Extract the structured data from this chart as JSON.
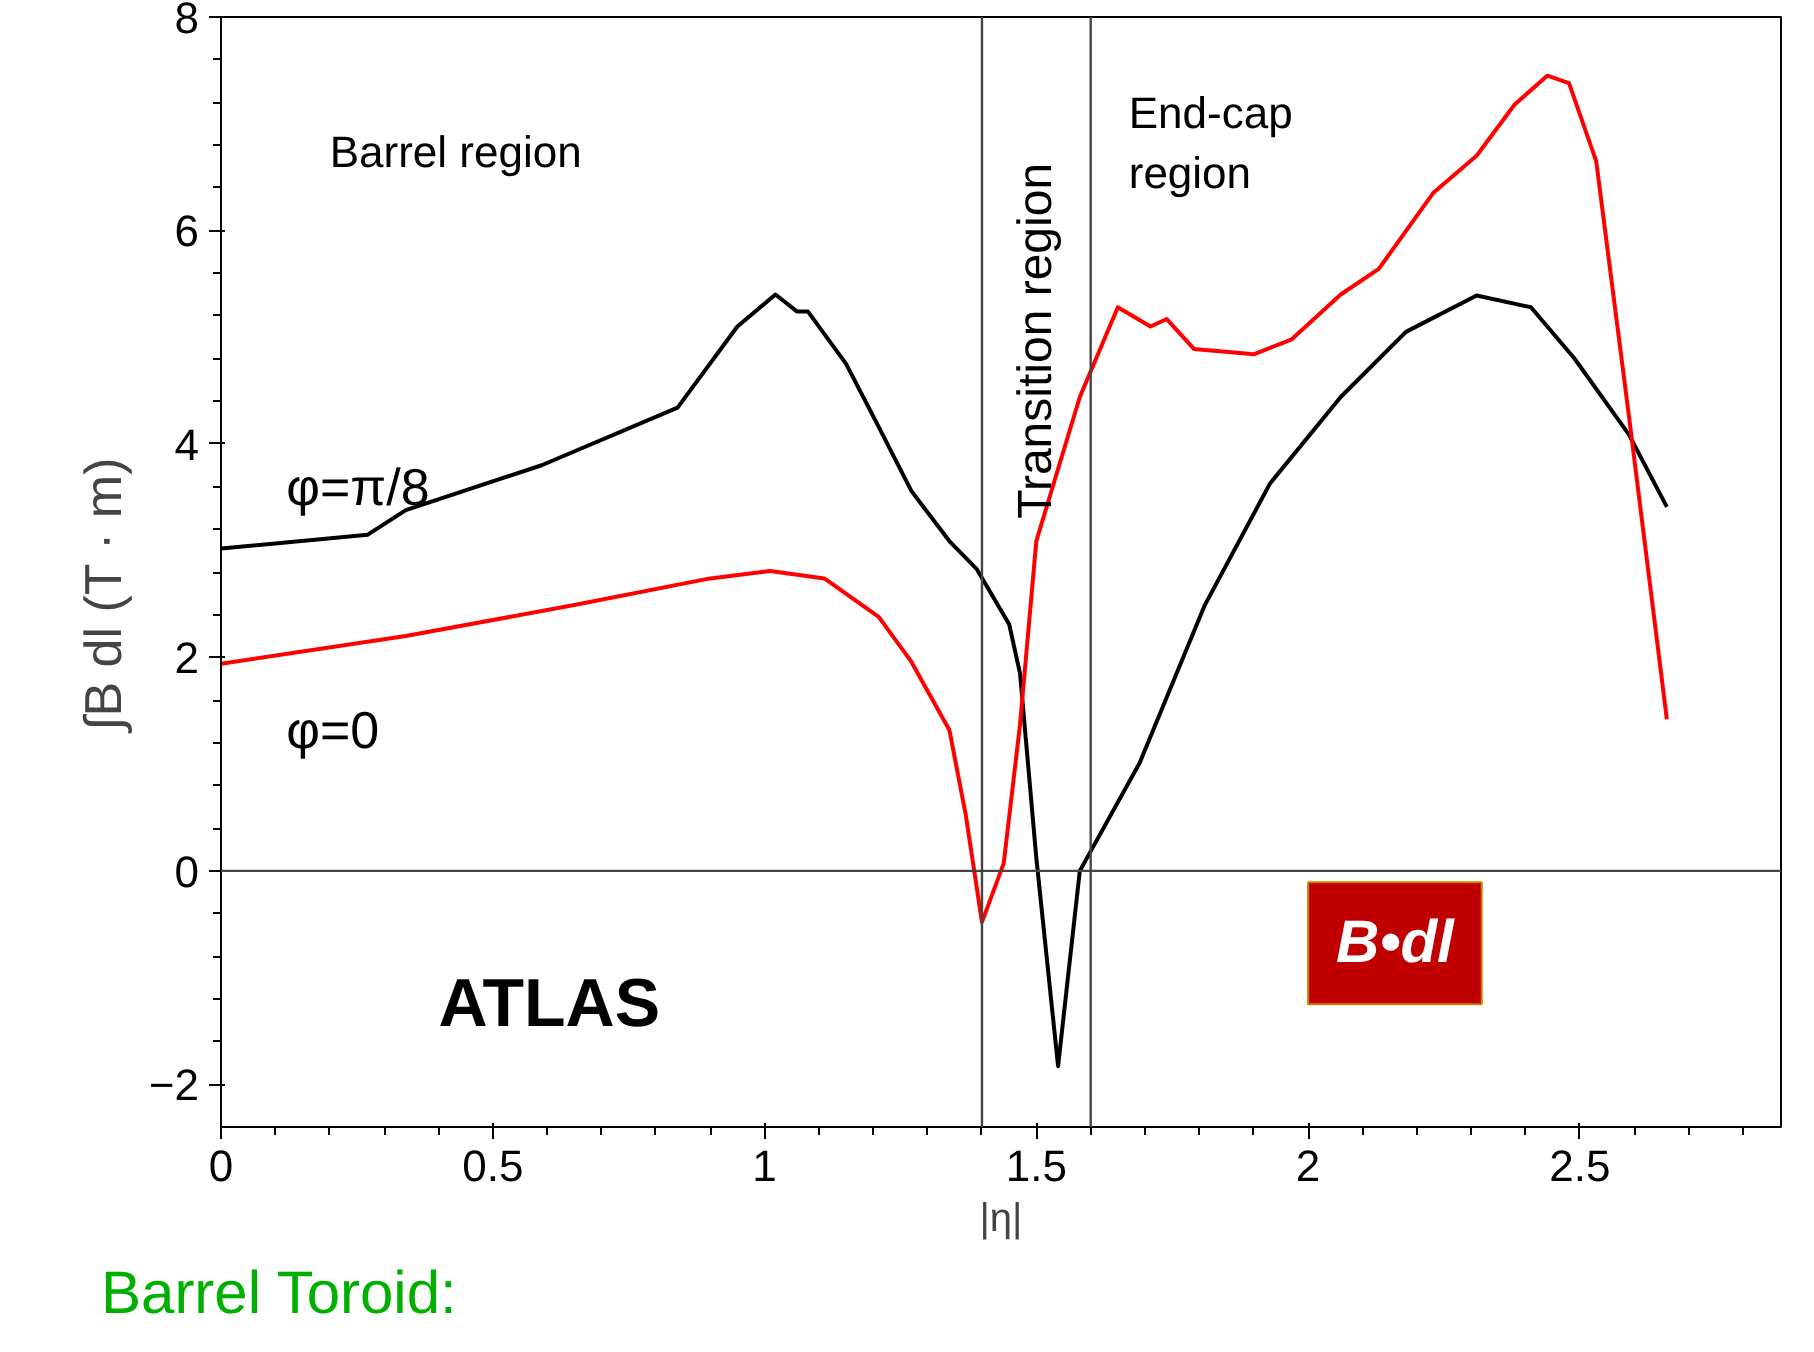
{
  "chart_data": {
    "type": "line",
    "xlabel": "|η|",
    "ylabel": "∫B dl    (T · m)",
    "xlim": [
      0,
      2.87
    ],
    "ylim": [
      -2.4,
      8
    ],
    "xticks": [
      0,
      0.5,
      1,
      1.5,
      2,
      2.5
    ],
    "yticks": [
      -2,
      0,
      2,
      4,
      6,
      8
    ],
    "grid": false,
    "legend": false,
    "marker": "none",
    "line_style": "solid",
    "series": [
      {
        "name": "φ=π/8",
        "color": "#000000",
        "x": [
          0,
          0.27,
          0.34,
          0.59,
          0.84,
          0.95,
          1.02,
          1.06,
          1.08,
          1.15,
          1.21,
          1.27,
          1.34,
          1.39,
          1.45,
          1.47,
          1.5,
          1.54,
          1.58,
          1.69,
          1.81,
          1.93,
          2.06,
          2.18,
          2.31,
          2.41,
          2.49,
          2.59,
          2.66
        ],
        "values": [
          3.02,
          3.15,
          3.38,
          3.8,
          4.34,
          5.1,
          5.4,
          5.24,
          5.24,
          4.75,
          4.16,
          3.56,
          3.09,
          2.83,
          2.31,
          1.85,
          0.12,
          -1.83,
          0,
          1.01,
          2.49,
          3.63,
          4.44,
          5.05,
          5.39,
          5.28,
          4.8,
          4.09,
          3.41
        ]
      },
      {
        "name": "φ=0",
        "color": "#ff0000",
        "x": [
          0,
          0.34,
          0.65,
          0.9,
          1.01,
          1.11,
          1.21,
          1.27,
          1.34,
          1.37,
          1.4,
          1.44,
          1.47,
          1.5,
          1.58,
          1.65,
          1.71,
          1.74,
          1.79,
          1.9,
          1.97,
          2.06,
          2.13,
          2.23,
          2.31,
          2.38,
          2.44,
          2.48,
          2.53,
          2.59,
          2.66
        ],
        "values": [
          1.94,
          2.2,
          2.49,
          2.74,
          2.81,
          2.74,
          2.38,
          1.96,
          1.32,
          0.53,
          -0.48,
          0.07,
          1.37,
          3.09,
          4.44,
          5.28,
          5.1,
          5.17,
          4.89,
          4.84,
          4.98,
          5.4,
          5.64,
          6.35,
          6.7,
          7.18,
          7.45,
          7.38,
          6.65,
          4.27,
          1.42
        ]
      }
    ],
    "ref_lines": [
      {
        "axis": "y",
        "value": 0
      },
      {
        "axis": "x",
        "value": 1.4
      },
      {
        "axis": "x",
        "value": 1.6
      }
    ],
    "annotations": [
      "Barrel region",
      "Transition region",
      "End-cap\nregion",
      "ATLAS",
      "B•dl",
      "Barrel Toroid:"
    ]
  }
}
